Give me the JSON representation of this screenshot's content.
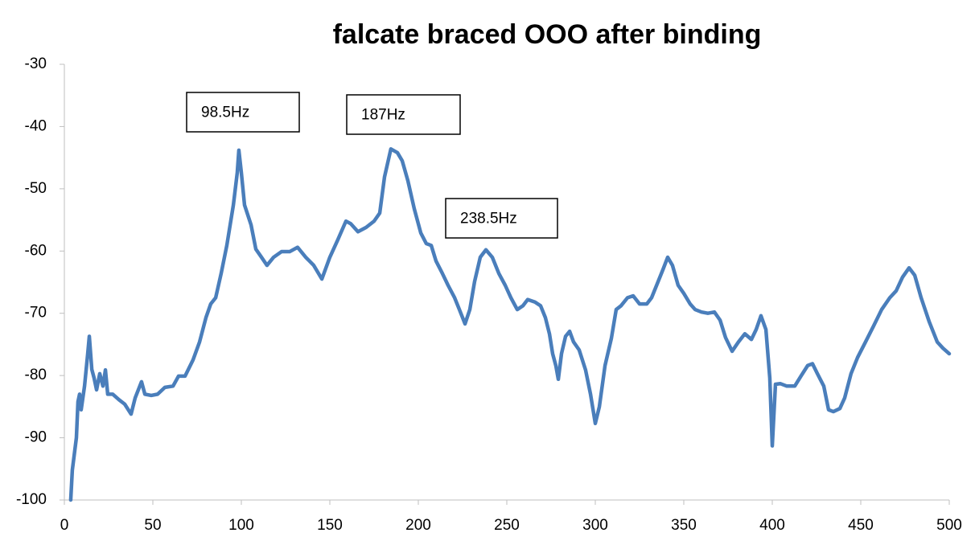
{
  "chart_data": {
    "type": "line",
    "title": "falcate braced OOO after binding",
    "annotations": [
      "98.5Hz",
      "187Hz",
      "238.5Hz"
    ],
    "xlim": [
      0,
      500
    ],
    "xticks": [
      0,
      50,
      100,
      150,
      200,
      250,
      300,
      350,
      400,
      450,
      500
    ],
    "ylim": [
      -100,
      -30
    ],
    "yticks": [
      -100,
      -90,
      -80,
      -70,
      -60,
      -50,
      -40,
      -30
    ],
    "grid": false,
    "series": [
      {
        "color": "#4a7ebb",
        "x": [
          3.6,
          4.5,
          6.8,
          7.7,
          8.6,
          9.5,
          11.4,
          13.2,
          14.1,
          15.5,
          16.8,
          18.2,
          20,
          21.8,
          23.2,
          24.5,
          27.3,
          30.9,
          34.1,
          37.7,
          40,
          41.8,
          43.6,
          45.5,
          49.1,
          52.7,
          56.8,
          61.4,
          64.5,
          68.2,
          72.7,
          76.4,
          80,
          82.7,
          85.5,
          88.6,
          91.8,
          95.5,
          97.7,
          98.6,
          100,
          101.8,
          105.5,
          108.2,
          111.4,
          114.5,
          118.2,
          122.7,
          127.3,
          131.8,
          136.4,
          140.9,
          145.5,
          150,
          154.5,
          159.1,
          161.8,
          165.9,
          170.5,
          175,
          178.2,
          180.9,
          184.5,
          188.2,
          190.9,
          194.1,
          197.7,
          201.4,
          204.5,
          207.3,
          210,
          213.6,
          216.8,
          220.5,
          223.2,
          226.4,
          229.1,
          231.8,
          235,
          238.2,
          241.8,
          245.5,
          249.1,
          252.3,
          255.9,
          259.1,
          261.8,
          265.9,
          269.1,
          271.8,
          274.1,
          275.9,
          277.7,
          279.1,
          280.9,
          283.2,
          285.5,
          287.7,
          290.9,
          294.5,
          297.3,
          300,
          302.3,
          305.5,
          309.1,
          311.8,
          314.5,
          318.2,
          321.4,
          325,
          329.1,
          331.8,
          335.5,
          338.2,
          340.9,
          343.6,
          346.8,
          350,
          353.6,
          356.4,
          360,
          363.6,
          367.3,
          370.5,
          373.6,
          377.3,
          380.9,
          384.5,
          388.2,
          390.9,
          393.6,
          396.4,
          398.6,
          400,
          401.8,
          404.5,
          408.2,
          412.7,
          416.4,
          420,
          422.7,
          425.5,
          429.1,
          431.8,
          434.5,
          438.2,
          440.9,
          444.5,
          448.2,
          452.7,
          457.3,
          461.8,
          466.4,
          470,
          473.6,
          477.3,
          480.5,
          484.1,
          488.6,
          493.2,
          496.4,
          500
        ],
        "values": [
          -100,
          -95.2,
          -90,
          -84.2,
          -83,
          -85.5,
          -81.7,
          -76.5,
          -73.7,
          -79,
          -80.4,
          -82.3,
          -79.7,
          -81.7,
          -79.1,
          -83,
          -83,
          -83.9,
          -84.6,
          -86.2,
          -83.6,
          -82.3,
          -81,
          -83,
          -83.2,
          -83,
          -81.9,
          -81.7,
          -80.1,
          -80.1,
          -77.5,
          -74.6,
          -70.7,
          -68.5,
          -67.5,
          -63.6,
          -59.1,
          -52.6,
          -47.4,
          -43.8,
          -47.4,
          -52.6,
          -55.8,
          -59.7,
          -61,
          -62.3,
          -61,
          -60.1,
          -60.1,
          -59.4,
          -61,
          -62.3,
          -64.5,
          -61,
          -58.2,
          -55.2,
          -55.6,
          -56.9,
          -56.2,
          -55.2,
          -53.9,
          -48.1,
          -43.6,
          -44.2,
          -45.5,
          -48.7,
          -53.2,
          -57.1,
          -58.8,
          -59.1,
          -61.6,
          -63.6,
          -65.5,
          -67.5,
          -69.4,
          -71.7,
          -69.4,
          -64.9,
          -61,
          -59.8,
          -61,
          -63.6,
          -65.5,
          -67.5,
          -69.4,
          -68.8,
          -67.8,
          -68.2,
          -68.8,
          -70.7,
          -73.3,
          -76.5,
          -78.4,
          -80.6,
          -76.5,
          -73.7,
          -72.9,
          -74.6,
          -75.9,
          -79.1,
          -83,
          -87.7,
          -85,
          -78.4,
          -74,
          -69.4,
          -68.8,
          -67.5,
          -67.2,
          -68.5,
          -68.5,
          -67.5,
          -64.9,
          -63,
          -61,
          -62.3,
          -65.5,
          -66.8,
          -68.5,
          -69.4,
          -69.8,
          -70,
          -69.8,
          -71.1,
          -73.9,
          -76.1,
          -74.6,
          -73.3,
          -74.2,
          -72.6,
          -70.4,
          -72.6,
          -80.4,
          -91.3,
          -81.4,
          -81.3,
          -81.7,
          -81.7,
          -80,
          -78.4,
          -78.1,
          -79.7,
          -81.7,
          -85.5,
          -85.8,
          -85.3,
          -83.6,
          -79.7,
          -77.1,
          -74.6,
          -72,
          -69.4,
          -67.5,
          -66.4,
          -64.2,
          -62.7,
          -63.9,
          -67.5,
          -71.3,
          -74.6,
          -75.6,
          -76.5
        ]
      }
    ]
  }
}
